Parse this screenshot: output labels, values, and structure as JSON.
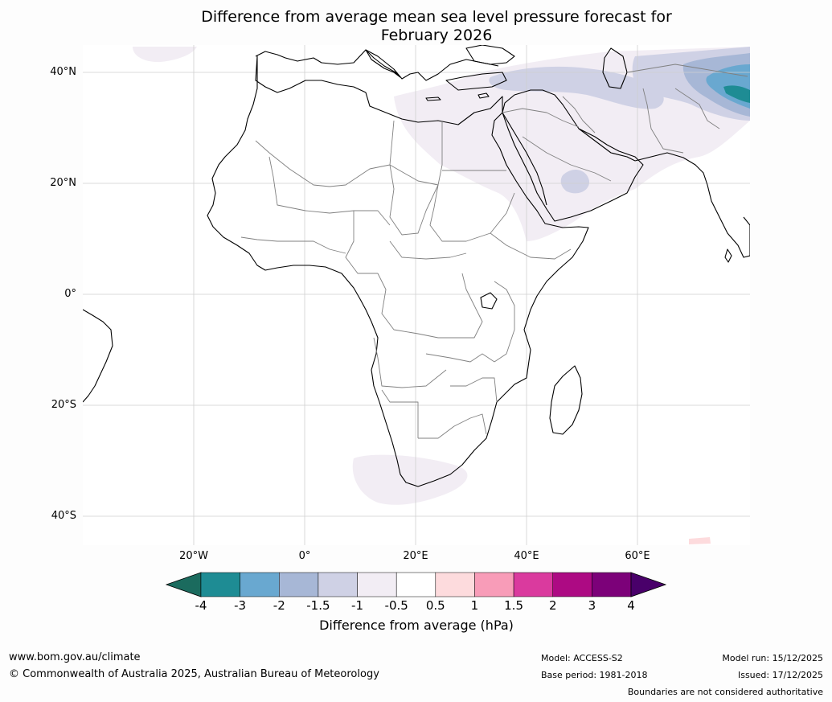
{
  "title": {
    "line1": "Difference from average mean sea level pressure forecast for",
    "line2": "February 2026"
  },
  "map": {
    "lat_labels": [
      "40°N",
      "20°N",
      "0°",
      "20°S",
      "40°S"
    ],
    "lon_labels": [
      "20°W",
      "0°",
      "20°E",
      "40°E",
      "60°E"
    ]
  },
  "colorbar": {
    "ticks": [
      "-4",
      "-3",
      "-2",
      "-1.5",
      "-1",
      "-0.5",
      "0.5",
      "1",
      "1.5",
      "2",
      "3",
      "4"
    ],
    "colors": [
      "#1b6b5e",
      "#1e8c94",
      "#69a8d0",
      "#a7b7d6",
      "#cfd1e5",
      "#f2edf4",
      "#ffffff",
      "#fddbdd",
      "#f89cb8",
      "#da3a9e",
      "#ad0a83",
      "#7c0179",
      "#49006a"
    ],
    "label": "Difference from average (hPa)"
  },
  "footer": {
    "website": "www.bom.gov.au/climate",
    "copyright": "© Commonwealth of Australia 2025, Australian Bureau of Meteorology",
    "model": "Model: ACCESS-S2",
    "base_period": "Base period: 1981-2018",
    "model_run": "Model run: 15/12/2025",
    "issued": "Issued: 17/12/2025",
    "disclaimer": "Boundaries are not considered authoritative"
  }
}
